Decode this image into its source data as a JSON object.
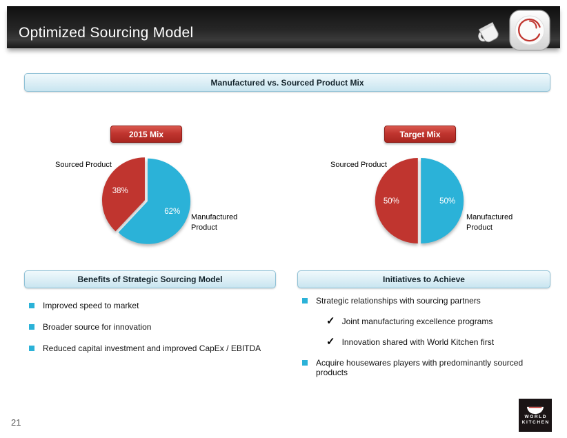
{
  "slide": {
    "title": "Optimized Sourcing Model",
    "page_number": "21"
  },
  "main_banner": "Manufactured vs. Sourced Product Mix",
  "chart_data": [
    {
      "type": "pie",
      "button_label": "2015 Mix",
      "slices": [
        {
          "label": "Manufactured Product",
          "value": 62,
          "display": "62%",
          "color": "#2bb2d8"
        },
        {
          "label": "Sourced Product",
          "value": 38,
          "display": "38%",
          "color": "#c0352f"
        }
      ],
      "callout_left": "Sourced Product",
      "callout_right_line1": "Manufactured",
      "callout_right_line2": "Product"
    },
    {
      "type": "pie",
      "button_label": "Target Mix",
      "slices": [
        {
          "label": "Manufactured Product",
          "value": 50,
          "display": "50%",
          "color": "#2bb2d8"
        },
        {
          "label": "Sourced Product",
          "value": 50,
          "display": "50%",
          "color": "#c0352f"
        }
      ],
      "callout_left": "Sourced Product",
      "callout_right_line1": "Manufactured",
      "callout_right_line2": "Product"
    }
  ],
  "benefits": {
    "header": "Benefits of Strategic Sourcing Model",
    "items": [
      "Improved speed to market",
      "Broader source for innovation",
      "Reduced capital investment and improved CapEx / EBITDA"
    ]
  },
  "initiatives": {
    "header": "Initiatives to Achieve",
    "items": [
      "Strategic relationships with sourcing partners",
      "Joint manufacturing excellence programs",
      "Innovation shared with World Kitchen first",
      "Acquire housewares players with predominantly sourced products"
    ]
  },
  "icons": {
    "check": "✓"
  },
  "logo": {
    "line1": "WORLD",
    "line2": "KITCHEN"
  },
  "colors": {
    "accent_red": "#c0352f",
    "accent_cyan": "#2bb2d8",
    "banner_blue": "#d9edf5"
  }
}
